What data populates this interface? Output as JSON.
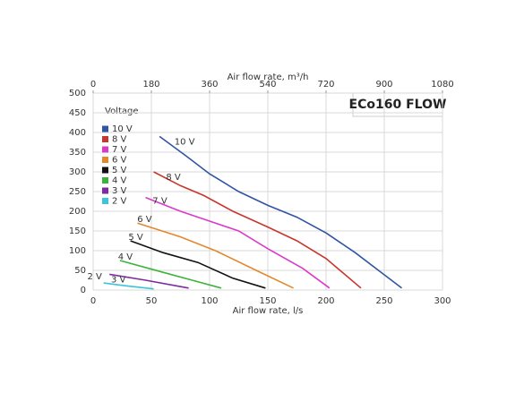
{
  "chart_data": {
    "type": "line",
    "title": "ECo160 FLOW",
    "xlabel": "Air flow rate, l/s",
    "x2label": "Air flow rate, m³/h",
    "legend_title": "Voltage",
    "xlim": [
      0,
      300
    ],
    "xticks": [
      0,
      50,
      100,
      150,
      200,
      250,
      300
    ],
    "x2lim": [
      0,
      1080
    ],
    "x2ticks": [
      0,
      180,
      360,
      540,
      720,
      900,
      1080
    ],
    "ylim": [
      0,
      500
    ],
    "yticks": [
      0,
      50,
      100,
      150,
      200,
      250,
      300,
      350,
      400,
      450,
      500
    ],
    "grid": true,
    "legend": "upper left",
    "series": [
      {
        "name": "10 V",
        "color": "#2f55a4",
        "x": [
          57,
          80,
          100,
          125,
          150,
          175,
          200,
          225,
          245,
          265
        ],
        "values": [
          390,
          340,
          295,
          250,
          215,
          185,
          145,
          95,
          50,
          5
        ]
      },
      {
        "name": "8 V",
        "color": "#c8372d",
        "x": [
          52,
          75,
          95,
          120,
          150,
          175,
          200,
          230
        ],
        "values": [
          300,
          265,
          240,
          200,
          160,
          125,
          80,
          5
        ]
      },
      {
        "name": "7 V",
        "color": "#d93bc8",
        "x": [
          45,
          75,
          100,
          125,
          150,
          180,
          203
        ],
        "values": [
          235,
          200,
          175,
          150,
          105,
          55,
          5
        ]
      },
      {
        "name": "6 V",
        "color": "#e2892c",
        "x": [
          38,
          75,
          105,
          140,
          172
        ],
        "values": [
          170,
          135,
          100,
          50,
          5
        ]
      },
      {
        "name": "5 V",
        "color": "#111111",
        "x": [
          32,
          60,
          90,
          120,
          148
        ],
        "values": [
          125,
          95,
          70,
          30,
          5
        ]
      },
      {
        "name": "4 V",
        "color": "#3cb43c",
        "x": [
          23,
          60,
          85,
          110
        ],
        "values": [
          75,
          45,
          25,
          5
        ]
      },
      {
        "name": "3 V",
        "color": "#7a2c9e",
        "x": [
          14,
          45,
          82
        ],
        "values": [
          40,
          25,
          5
        ]
      },
      {
        "name": "2 V",
        "color": "#3cc4d8",
        "x": [
          9,
          30,
          52
        ],
        "values": [
          18,
          10,
          3
        ]
      }
    ]
  }
}
